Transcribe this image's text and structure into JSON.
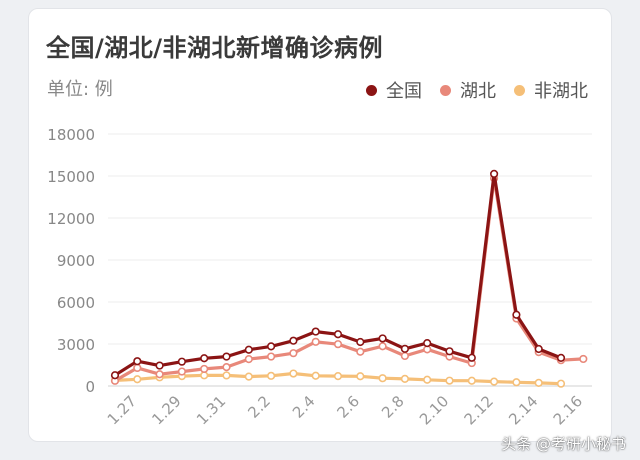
{
  "chart_data": {
    "type": "line",
    "title": "全国/湖北/非湖北新增确诊病例",
    "unit_label": "单位: 例",
    "legend_position": "top-right",
    "grid": true,
    "ylim": [
      0,
      18000
    ],
    "y_ticks": [
      0,
      3000,
      6000,
      9000,
      12000,
      15000,
      18000
    ],
    "x_tick_labels": [
      "1.27",
      "1.29",
      "1.31",
      "2.2",
      "2.4",
      "2.6",
      "2.8",
      "2.10",
      "2.12",
      "2.14",
      "2.16"
    ],
    "x": [
      "1.26",
      "1.27",
      "1.28",
      "1.29",
      "1.30",
      "1.31",
      "2.1",
      "2.2",
      "2.3",
      "2.4",
      "2.5",
      "2.6",
      "2.7",
      "2.8",
      "2.9",
      "2.10",
      "2.11",
      "2.12",
      "2.13",
      "2.14",
      "2.15",
      "2.16"
    ],
    "series": [
      {
        "name": "全国",
        "color": "#8b1414",
        "values": [
          769,
          1771,
          1459,
          1737,
          1982,
          2102,
          2590,
          2829,
          3235,
          3887,
          3694,
          3143,
          3399,
          2656,
          3062,
          2478,
          2015,
          15152,
          5090,
          2641,
          2009,
          null
        ]
      },
      {
        "name": "湖北",
        "color": "#e8887a",
        "values": [
          371,
          1291,
          840,
          1032,
          1220,
          1347,
          1921,
          2103,
          2345,
          3156,
          2987,
          2447,
          2841,
          2147,
          2618,
          2097,
          1638,
          14840,
          4823,
          2420,
          1843,
          1933
        ]
      },
      {
        "name": "非湖北",
        "color": "#f5bf78",
        "values": [
          398,
          480,
          619,
          705,
          762,
          755,
          669,
          726,
          890,
          731,
          707,
          696,
          558,
          509,
          444,
          381,
          377,
          312,
          267,
          221,
          166,
          null
        ]
      }
    ]
  },
  "watermark": "头条 @考研小秘书"
}
